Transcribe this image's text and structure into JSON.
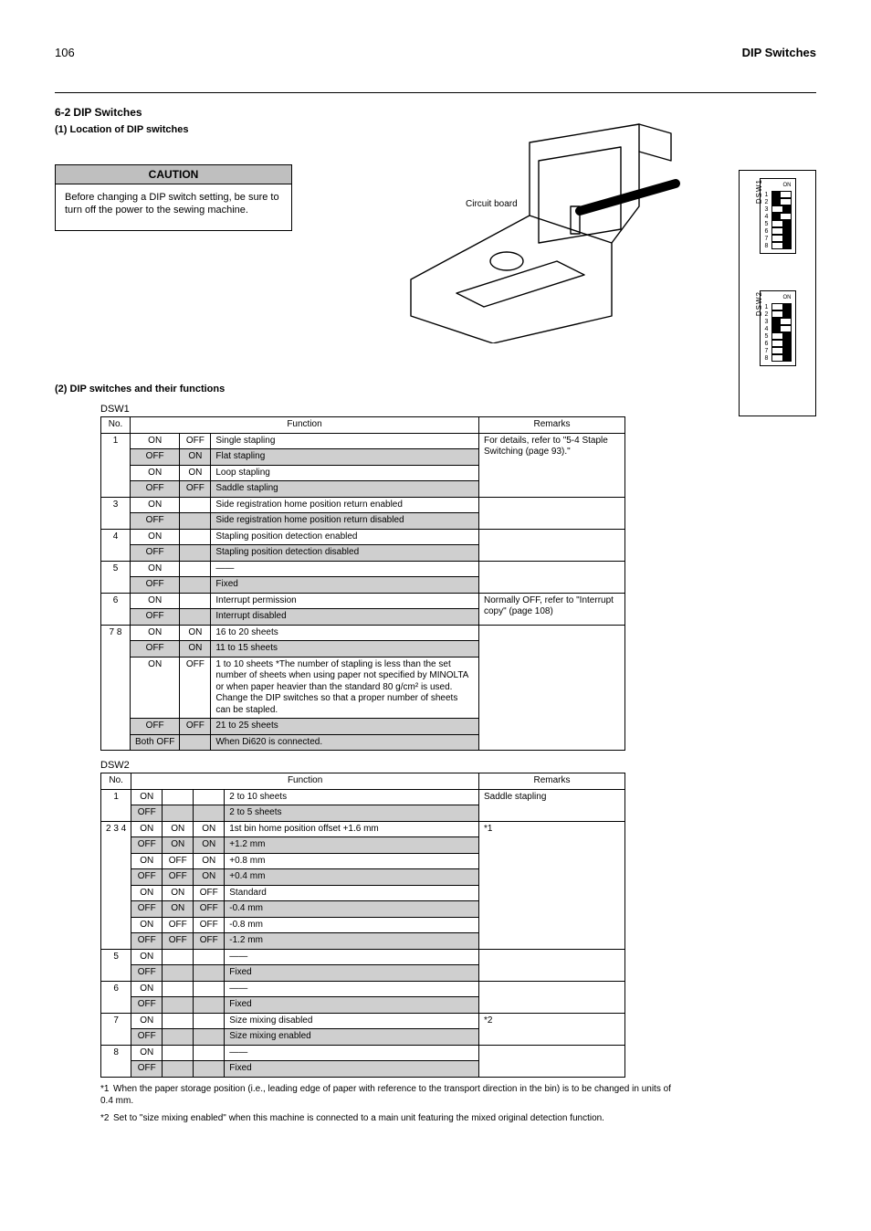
{
  "header": {
    "page_number": "106",
    "title": "DIP Switches"
  },
  "section": {
    "heading_num": "6-2",
    "heading_text": "DIP Switches",
    "sub1_num": "(1)",
    "sub1_text": "Location of DIP switches",
    "sub2_num": "(2)",
    "sub2_text": "DIP switches and their functions"
  },
  "warning": {
    "title": "CAUTION",
    "body": "Before changing a DIP switch setting, be sure to turn off the power to the sewing machine."
  },
  "diagram": {
    "labels": {
      "panel": "Circuit board",
      "dsw1": "DSW1",
      "dsw2": "DSW2",
      "on": "ON"
    }
  },
  "dip1": {
    "title": "DSW1",
    "positions": [
      "off",
      "off",
      "on",
      "off",
      "on",
      "on",
      "on",
      "on"
    ],
    "columns": [
      "No.",
      "Function",
      "Remarks"
    ],
    "rows": [
      {
        "no": "1",
        "sub": [
          [
            "ON",
            "OFF",
            "Single stapling"
          ],
          [
            "OFF",
            "ON",
            "Flat stapling"
          ],
          [
            "ON",
            "ON",
            "Loop stapling"
          ],
          [
            "OFF",
            "OFF",
            "Saddle stapling"
          ]
        ],
        "rowspan": 4,
        "remarks": "For details, refer to \"5-4 Staple Switching (page 93).\""
      },
      {
        "no": "3",
        "sub": [
          [
            "ON",
            "",
            "Side registration home position return enabled"
          ],
          [
            "OFF",
            "",
            "Side registration home position return disabled"
          ]
        ],
        "remarks": ""
      },
      {
        "no": "4",
        "sub": [
          [
            "ON",
            "",
            "Stapling position detection enabled"
          ],
          [
            "OFF",
            "",
            "Stapling position detection disabled"
          ]
        ],
        "remarks": ""
      },
      {
        "no": "5",
        "sub": [
          [
            "ON",
            "",
            "——"
          ],
          [
            "OFF",
            "",
            "Fixed"
          ]
        ],
        "remarks": ""
      },
      {
        "no": "6",
        "sub": [
          [
            "ON",
            "",
            "Interrupt permission"
          ],
          [
            "OFF",
            "",
            "Interrupt disabled"
          ]
        ],
        "remarks": "Normally OFF, refer to \"Interrupt copy\" (page 108)"
      },
      {
        "no": "7 8",
        "sub": [
          [
            "ON",
            "ON",
            "16 to 20 sheets"
          ],
          [
            "OFF",
            "ON",
            "11 to 15 sheets"
          ],
          [
            "ON",
            "OFF",
            "1 to 10 sheets *The number of stapling is less than the set number of sheets when using paper not specified by MINOLTA or when paper heavier than the standard 80 g/cm² is used. Change the DIP switches so that a proper number of sheets can be stapled."
          ],
          [
            "OFF",
            "OFF",
            "21 to 25 sheets"
          ],
          [
            "Both OFF",
            "",
            "When Di620 is connected."
          ]
        ],
        "rowspan": 5,
        "remarks": ""
      }
    ]
  },
  "dip2": {
    "title": "DSW2",
    "positions": [
      "on",
      "on",
      "off",
      "off",
      "on",
      "on",
      "on",
      "on"
    ],
    "columns": [
      "No.",
      "Function",
      "Remarks"
    ],
    "rows": [
      {
        "no": "1",
        "sub": [
          [
            "ON",
            "",
            "2 to 10 sheets"
          ],
          [
            "OFF",
            "",
            "2 to 5 sheets"
          ]
        ],
        "remarks": "Saddle stapling"
      },
      {
        "no": "2 3 4",
        "sub": [
          [
            "ON",
            "ON",
            "ON",
            "1st bin home position offset +1.6 mm"
          ],
          [
            "OFF",
            "ON",
            "ON",
            "+1.2 mm"
          ],
          [
            "ON",
            "OFF",
            "ON",
            "+0.8 mm"
          ],
          [
            "OFF",
            "OFF",
            "ON",
            "+0.4 mm"
          ],
          [
            "ON",
            "ON",
            "OFF",
            "Standard"
          ],
          [
            "OFF",
            "ON",
            "OFF",
            "-0.4 mm"
          ],
          [
            "ON",
            "OFF",
            "OFF",
            "-0.8 mm"
          ],
          [
            "OFF",
            "OFF",
            "OFF",
            "-1.2 mm"
          ]
        ],
        "rowspan": 8,
        "remarks": "*1"
      },
      {
        "no": "5",
        "sub": [
          [
            "ON",
            "",
            "——"
          ],
          [
            "OFF",
            "",
            "Fixed"
          ]
        ],
        "remarks": ""
      },
      {
        "no": "6",
        "sub": [
          [
            "ON",
            "",
            "——"
          ],
          [
            "OFF",
            "",
            "Fixed"
          ]
        ],
        "remarks": ""
      },
      {
        "no": "7",
        "sub": [
          [
            "ON",
            "",
            "Size mixing disabled"
          ],
          [
            "OFF",
            "",
            "Size mixing enabled"
          ]
        ],
        "remarks": "*2"
      },
      {
        "no": "8",
        "sub": [
          [
            "ON",
            "",
            "——"
          ],
          [
            "OFF",
            "",
            "Fixed"
          ]
        ],
        "remarks": ""
      }
    ]
  },
  "footnotes": {
    "f1_label": "*1",
    "f1_text": "When the paper storage position (i.e., leading edge of paper with reference to the transport direction in the bin) is to be changed in units of 0.4 mm.",
    "f2_label": "*2",
    "f2_text": "Set to \"size mixing enabled\" when this machine is connected to a main unit featuring the mixed original detection function."
  },
  "colors": {
    "shade": "#cfcfcf",
    "rule": "#000000"
  }
}
